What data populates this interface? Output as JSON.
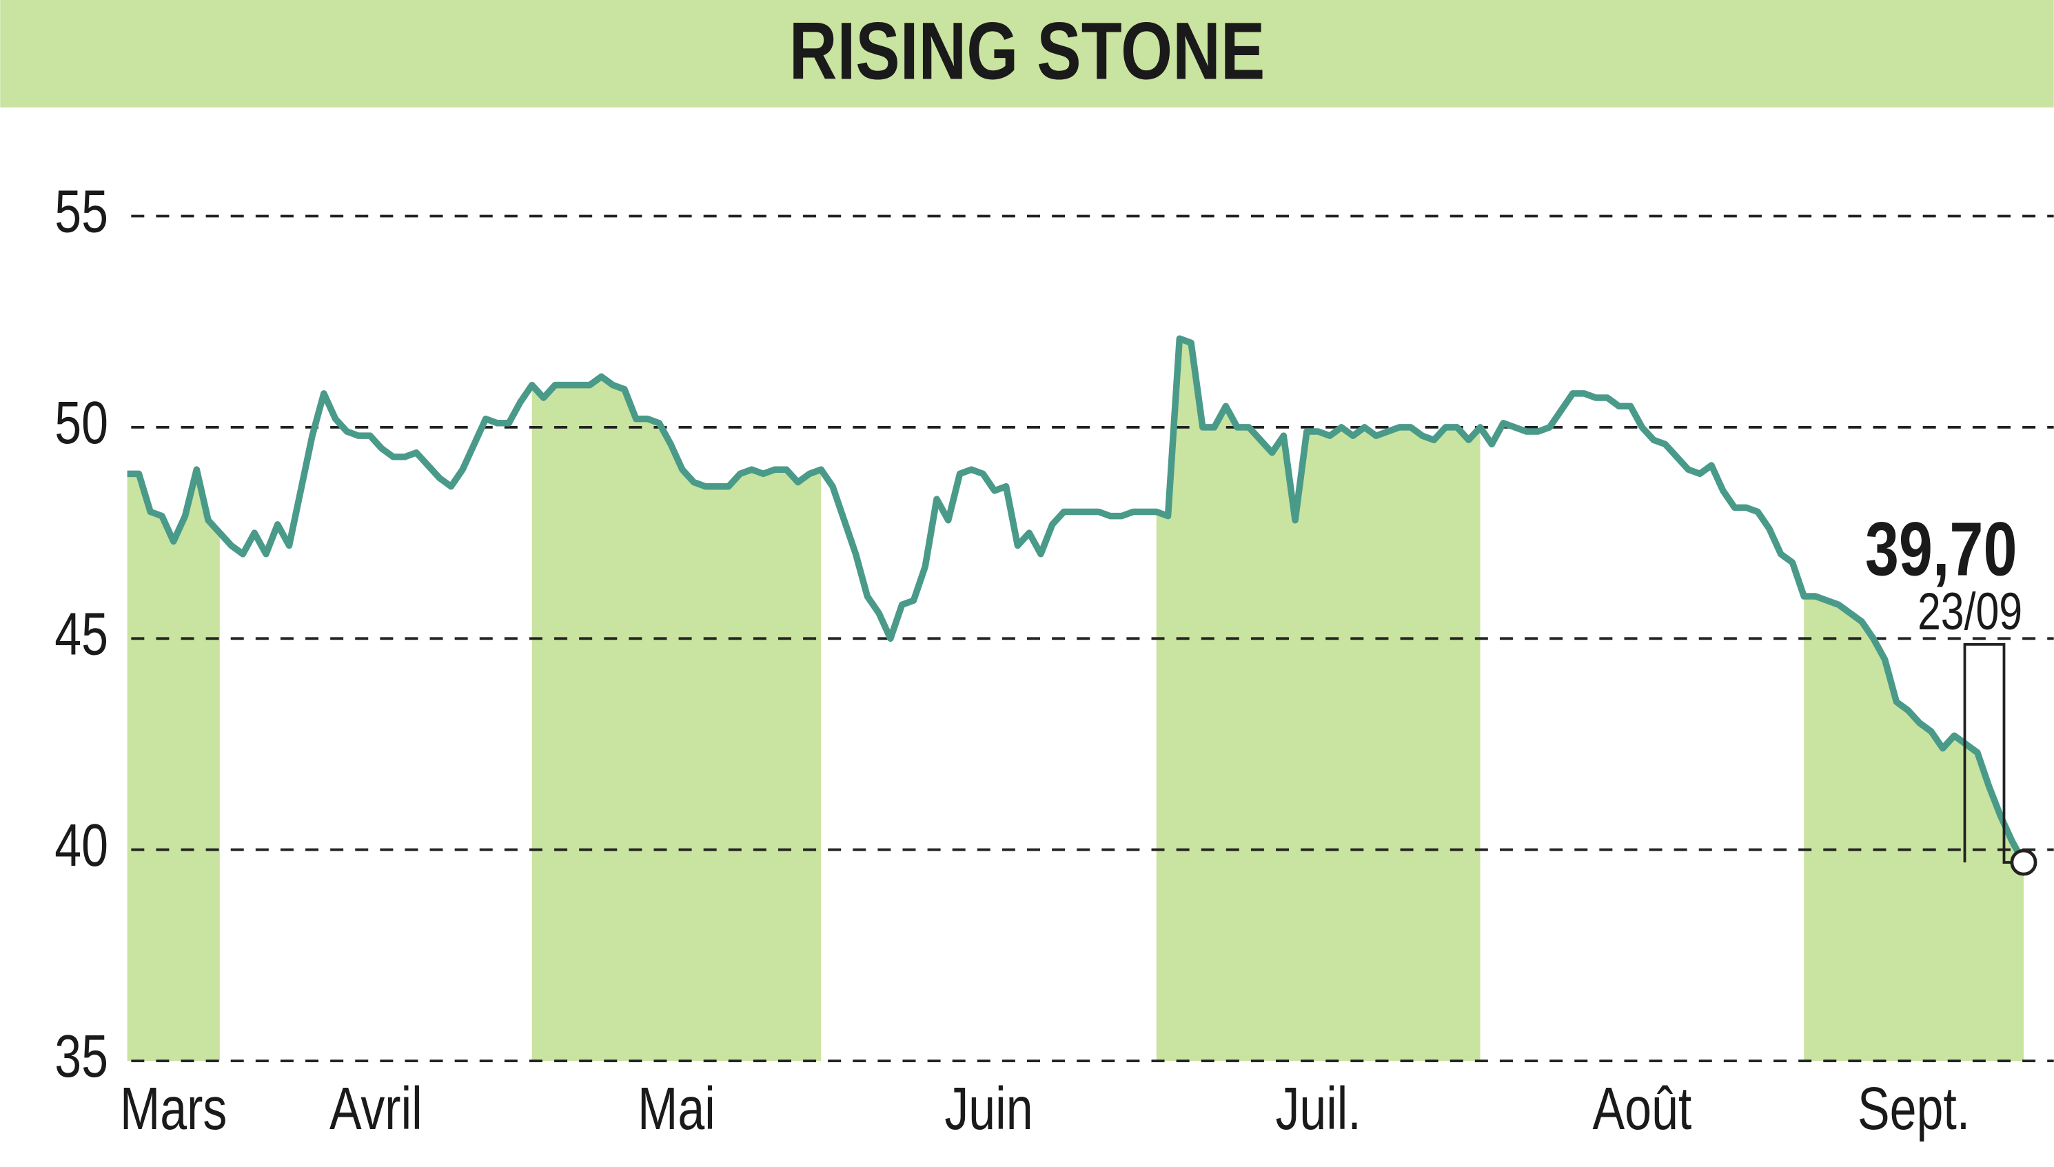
{
  "chart_data": {
    "type": "line",
    "title": "RISING STONE",
    "months": [
      {
        "label": "Mars",
        "values": [
          48.9,
          48.9,
          48.0,
          47.9,
          47.3,
          47.9,
          49.0,
          47.8,
          47.5
        ]
      },
      {
        "label": "Avril",
        "values": [
          47.2,
          47.0,
          47.5,
          47.0,
          47.7,
          47.2,
          48.5,
          49.8,
          50.8,
          50.2,
          49.9,
          49.8,
          49.8,
          49.5,
          49.3,
          49.3,
          49.4,
          49.1,
          48.8,
          48.6,
          49.0,
          49.6,
          50.2,
          50.1,
          50.1,
          50.6
        ]
      },
      {
        "label": "Mai",
        "values": [
          51.0,
          50.7,
          51.0,
          51.0,
          51.0,
          51.0,
          51.2,
          51.0,
          50.9,
          50.2,
          50.2,
          50.1,
          49.6,
          49.0,
          48.7,
          48.6,
          48.6,
          48.6,
          48.9,
          49.0,
          48.9,
          49.0,
          49.0,
          48.7,
          48.9,
          49.0
        ]
      },
      {
        "label": "Juin",
        "values": [
          48.6,
          47.8,
          47.0,
          46.0,
          45.6,
          45.0,
          45.8,
          45.9,
          46.7,
          48.3,
          47.8,
          48.9,
          49.0,
          48.9,
          48.5,
          48.6,
          47.2,
          47.5,
          47.0,
          47.7,
          48.0,
          48.0,
          48.0,
          48.0,
          47.9,
          47.9,
          48.0,
          48.0
        ]
      },
      {
        "label": "Juil.",
        "values": [
          48.0,
          47.9,
          52.1,
          52.0,
          50.0,
          50.0,
          50.5,
          50.0,
          50.0,
          49.7,
          49.4,
          49.8,
          47.8,
          49.9,
          49.9,
          49.8,
          50.0,
          49.8,
          50.0,
          49.8,
          49.9,
          50.0,
          50.0,
          49.8,
          49.7,
          50.0,
          50.0,
          49.7,
          50.0
        ]
      },
      {
        "label": "Août",
        "values": [
          49.6,
          50.1,
          50.0,
          49.9,
          49.9,
          50.0,
          50.4,
          50.8,
          50.8,
          50.7,
          50.7,
          50.5,
          50.5,
          50.0,
          49.7,
          49.6,
          49.3,
          49.0,
          48.9,
          49.1,
          48.5,
          48.1,
          48.1,
          48.0,
          47.6,
          47.0,
          46.8
        ]
      },
      {
        "label": "Sept.",
        "values": [
          46.0,
          46.0,
          45.9,
          45.8,
          45.6,
          45.4,
          45.0,
          44.5,
          43.5,
          43.3,
          43.0,
          42.8,
          42.4,
          42.7,
          42.5,
          42.3,
          41.5,
          40.8,
          40.2,
          39.7
        ]
      }
    ],
    "line_color": "#4a9a8a",
    "shade_color": "#c9e3a0",
    "last_value_label": "39,70",
    "last_date": "23/09",
    "ylim": [
      35,
      55
    ],
    "yticks": [
      35,
      40,
      45,
      50,
      55
    ],
    "grid": true
  }
}
